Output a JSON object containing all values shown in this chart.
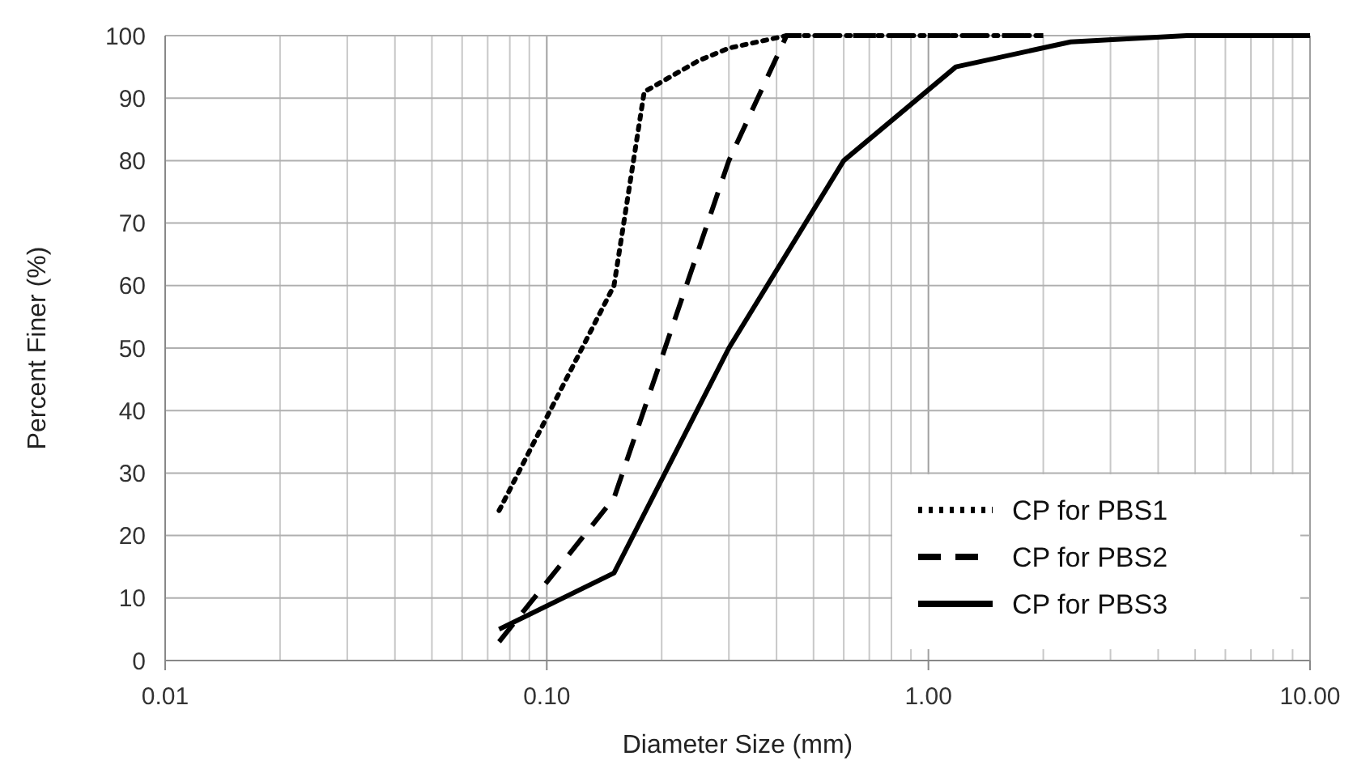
{
  "chart_data": {
    "type": "line",
    "xlabel": "Diameter Size (mm)",
    "ylabel": "Percent Finer (%)",
    "log": "x",
    "grid": true,
    "legend": "bottom right",
    "xlim": [
      0.01,
      10
    ],
    "xticks": [
      0.01,
      {
        "value": 0.1,
        "label": "0.10"
      },
      {
        "value": 1,
        "label": "1.00"
      },
      {
        "value": 10,
        "label": "10.00"
      }
    ],
    "ylim": [
      0,
      100
    ],
    "yticks": [
      0,
      10,
      20,
      30,
      40,
      50,
      60,
      70,
      80,
      90,
      100
    ],
    "series": [
      {
        "name": "CP for PBS1",
        "color": "#000000",
        "line_style": "dotted",
        "x": [
          0.075,
          0.15,
          0.18,
          0.25,
          0.3,
          0.425,
          0.6,
          1.18,
          2.0
        ],
        "values": [
          24,
          60,
          91,
          96,
          98,
          100,
          100,
          100,
          100
        ]
      },
      {
        "name": "CP for PBS2",
        "color": "#000000",
        "line_style": "dashed",
        "x": [
          0.075,
          0.15,
          0.3,
          0.425,
          0.6,
          1.18,
          2.0
        ],
        "values": [
          3,
          26,
          80,
          100,
          100,
          100,
          100
        ]
      },
      {
        "name": "CP for PBS3",
        "color": "#000000",
        "line_style": "solid",
        "x": [
          0.075,
          0.15,
          0.3,
          0.6,
          1.18,
          2.36,
          4.75,
          10
        ],
        "values": [
          5,
          14,
          50,
          80,
          95,
          99,
          100,
          100
        ]
      }
    ]
  }
}
